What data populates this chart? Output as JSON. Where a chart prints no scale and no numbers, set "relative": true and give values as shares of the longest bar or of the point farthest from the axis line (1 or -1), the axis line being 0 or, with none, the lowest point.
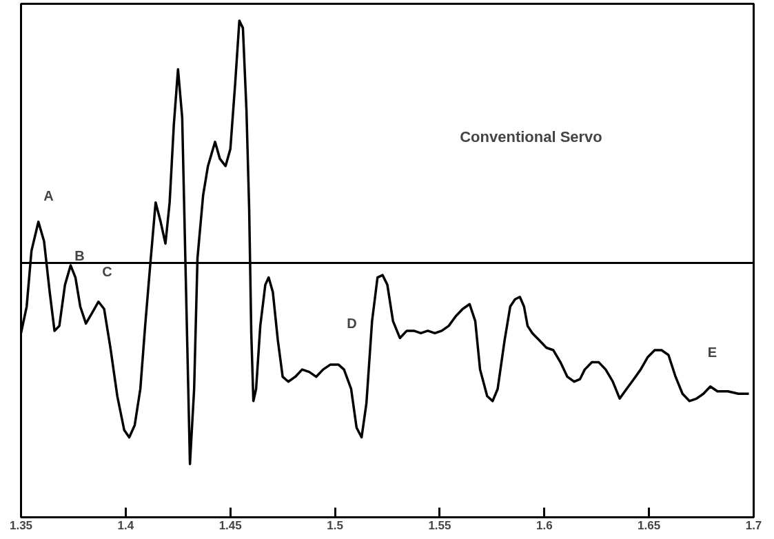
{
  "chart_data": {
    "type": "line",
    "relative": true,
    "x": [
      1.35,
      1.3527,
      1.355,
      1.3583,
      1.361,
      1.3637,
      1.366,
      1.3683,
      1.371,
      1.3737,
      1.376,
      1.3783,
      1.381,
      1.3837,
      1.387,
      1.3897,
      1.3927,
      1.396,
      1.3993,
      1.4017,
      1.4043,
      1.407,
      1.4093,
      1.4117,
      1.4143,
      1.4167,
      1.419,
      1.421,
      1.423,
      1.425,
      1.427,
      1.4287,
      1.4307,
      1.4327,
      1.4343,
      1.437,
      1.4393,
      1.4427,
      1.445,
      1.4477,
      1.45,
      1.4523,
      1.4543,
      1.456,
      1.4577,
      1.459,
      1.46,
      1.461,
      1.4623,
      1.4643,
      1.4667,
      1.4683,
      1.4703,
      1.4727,
      1.475,
      1.4777,
      1.481,
      1.4843,
      1.4877,
      1.491,
      1.4943,
      1.4977,
      1.5017,
      1.5043,
      1.5077,
      1.5103,
      1.5127,
      1.515,
      1.5177,
      1.5203,
      1.5227,
      1.525,
      1.5277,
      1.531,
      1.5343,
      1.5377,
      1.541,
      1.5443,
      1.5477,
      1.551,
      1.5543,
      1.5577,
      1.561,
      1.5643,
      1.567,
      1.5693,
      1.5727,
      1.5753,
      1.5777,
      1.581,
      1.5837,
      1.586,
      1.5883,
      1.5903,
      1.592,
      1.5943,
      1.5977,
      1.601,
      1.6043,
      1.6077,
      1.611,
      1.6143,
      1.617,
      1.6193,
      1.6227,
      1.626,
      1.6293,
      1.6327,
      1.636,
      1.6393,
      1.6427,
      1.646,
      1.6493,
      1.6527,
      1.656,
      1.6593,
      1.6627,
      1.666,
      1.6693,
      1.6727,
      1.676,
      1.6793,
      1.6827,
      1.6877,
      1.6927,
      1.6977
    ],
    "series": [
      {
        "color": "#000000",
        "values": [
          -0.29,
          -0.18,
          0.05,
          0.17,
          0.09,
          -0.12,
          -0.28,
          -0.26,
          -0.09,
          -0.01,
          -0.06,
          -0.18,
          -0.25,
          -0.21,
          -0.16,
          -0.19,
          -0.35,
          -0.55,
          -0.69,
          -0.72,
          -0.67,
          -0.52,
          -0.26,
          -0.01,
          0.25,
          0.17,
          0.08,
          0.25,
          0.57,
          0.8,
          0.6,
          -0.06,
          -0.83,
          -0.52,
          0.02,
          0.28,
          0.4,
          0.5,
          0.43,
          0.4,
          0.47,
          0.74,
          1.0,
          0.97,
          0.63,
          0.22,
          -0.29,
          -0.57,
          -0.52,
          -0.26,
          -0.09,
          -0.06,
          -0.12,
          -0.32,
          -0.47,
          -0.49,
          -0.47,
          -0.44,
          -0.45,
          -0.47,
          -0.44,
          -0.42,
          -0.42,
          -0.44,
          -0.52,
          -0.68,
          -0.72,
          -0.58,
          -0.24,
          -0.06,
          -0.05,
          -0.09,
          -0.24,
          -0.31,
          -0.28,
          -0.28,
          -0.29,
          -0.28,
          -0.29,
          -0.28,
          -0.26,
          -0.22,
          -0.19,
          -0.17,
          -0.24,
          -0.44,
          -0.55,
          -0.57,
          -0.52,
          -0.32,
          -0.18,
          -0.15,
          -0.14,
          -0.18,
          -0.26,
          -0.29,
          -0.32,
          -0.35,
          -0.36,
          -0.41,
          -0.47,
          -0.49,
          -0.48,
          -0.44,
          -0.41,
          -0.41,
          -0.44,
          -0.49,
          -0.56,
          -0.52,
          -0.48,
          -0.44,
          -0.39,
          -0.36,
          -0.36,
          -0.38,
          -0.47,
          -0.54,
          -0.57,
          -0.56,
          -0.54,
          -0.51,
          -0.53,
          -0.53,
          -0.54,
          -0.54
        ]
      }
    ],
    "xlim": [
      1.35,
      1.7
    ],
    "xticks": [
      1.35,
      1.4,
      1.45,
      1.5,
      1.55,
      1.6,
      1.65,
      1.7
    ],
    "annotations": [
      "Conventional Servo",
      "A",
      "B",
      "C",
      "D",
      "E"
    ],
    "grid": false,
    "marker": "none",
    "line_style": "solid"
  }
}
